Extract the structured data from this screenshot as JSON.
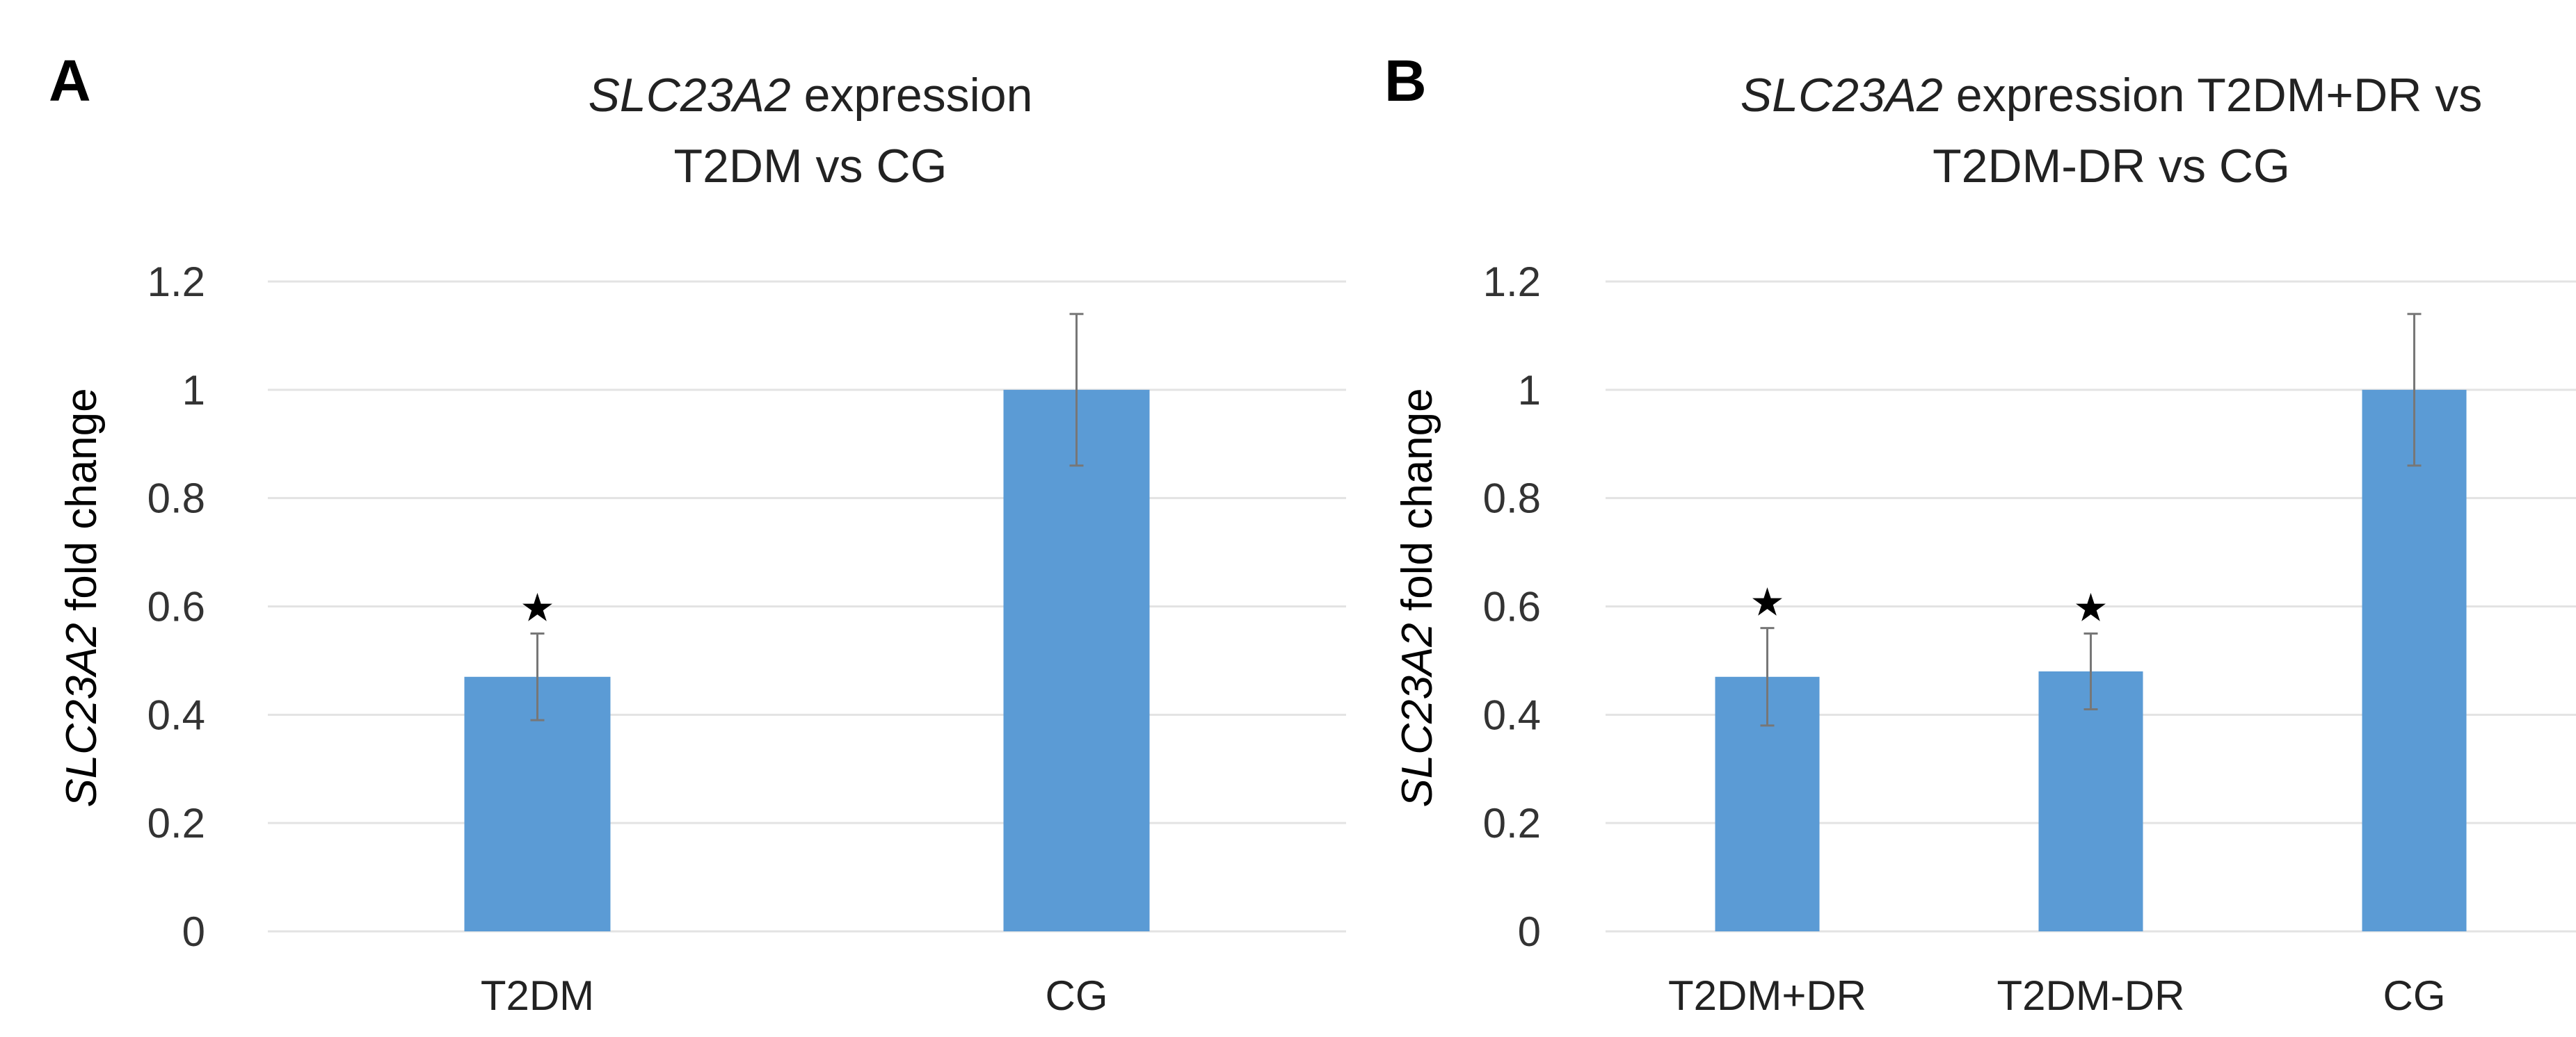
{
  "chart_data": [
    {
      "type": "bar",
      "panel_label": "A",
      "title": {
        "gene": "SLC23A2",
        "rest": " expression",
        "line2": "T2DM vs CG"
      },
      "ylabel": {
        "gene": "SLC23A2",
        "rest": " fold change"
      },
      "xlabel": "",
      "ylim": [
        0,
        1.2
      ],
      "yticks": [
        0,
        0.2,
        0.4,
        0.6,
        0.8,
        1,
        1.2
      ],
      "ytick_labels": [
        "0",
        "0.2",
        "0.4",
        "0.6",
        "0.8",
        "1",
        "1.2"
      ],
      "grid": true,
      "categories": [
        "T2DM",
        "CG"
      ],
      "values": [
        0.47,
        1.0
      ],
      "errors": [
        0.08,
        0.14
      ],
      "significance": [
        "★",
        ""
      ],
      "color": "#5b9bd5"
    },
    {
      "type": "bar",
      "panel_label": "B",
      "title": {
        "gene": "SLC23A2",
        "rest": " expression T2DM+DR vs",
        "line2": "T2DM-DR vs CG"
      },
      "ylabel": {
        "gene": "SLC23A2",
        "rest": " fold change"
      },
      "xlabel": "",
      "ylim": [
        0,
        1.2
      ],
      "yticks": [
        0,
        0.2,
        0.4,
        0.6,
        0.8,
        1,
        1.2
      ],
      "ytick_labels": [
        "0",
        "0.2",
        "0.4",
        "0.6",
        "0.8",
        "1",
        "1.2"
      ],
      "grid": true,
      "categories": [
        "T2DM+DR",
        "T2DM-DR",
        "CG"
      ],
      "values": [
        0.47,
        0.48,
        1.0
      ],
      "errors": [
        0.09,
        0.07,
        0.14
      ],
      "significance": [
        "★",
        "★",
        ""
      ],
      "color": "#5b9bd5"
    }
  ]
}
